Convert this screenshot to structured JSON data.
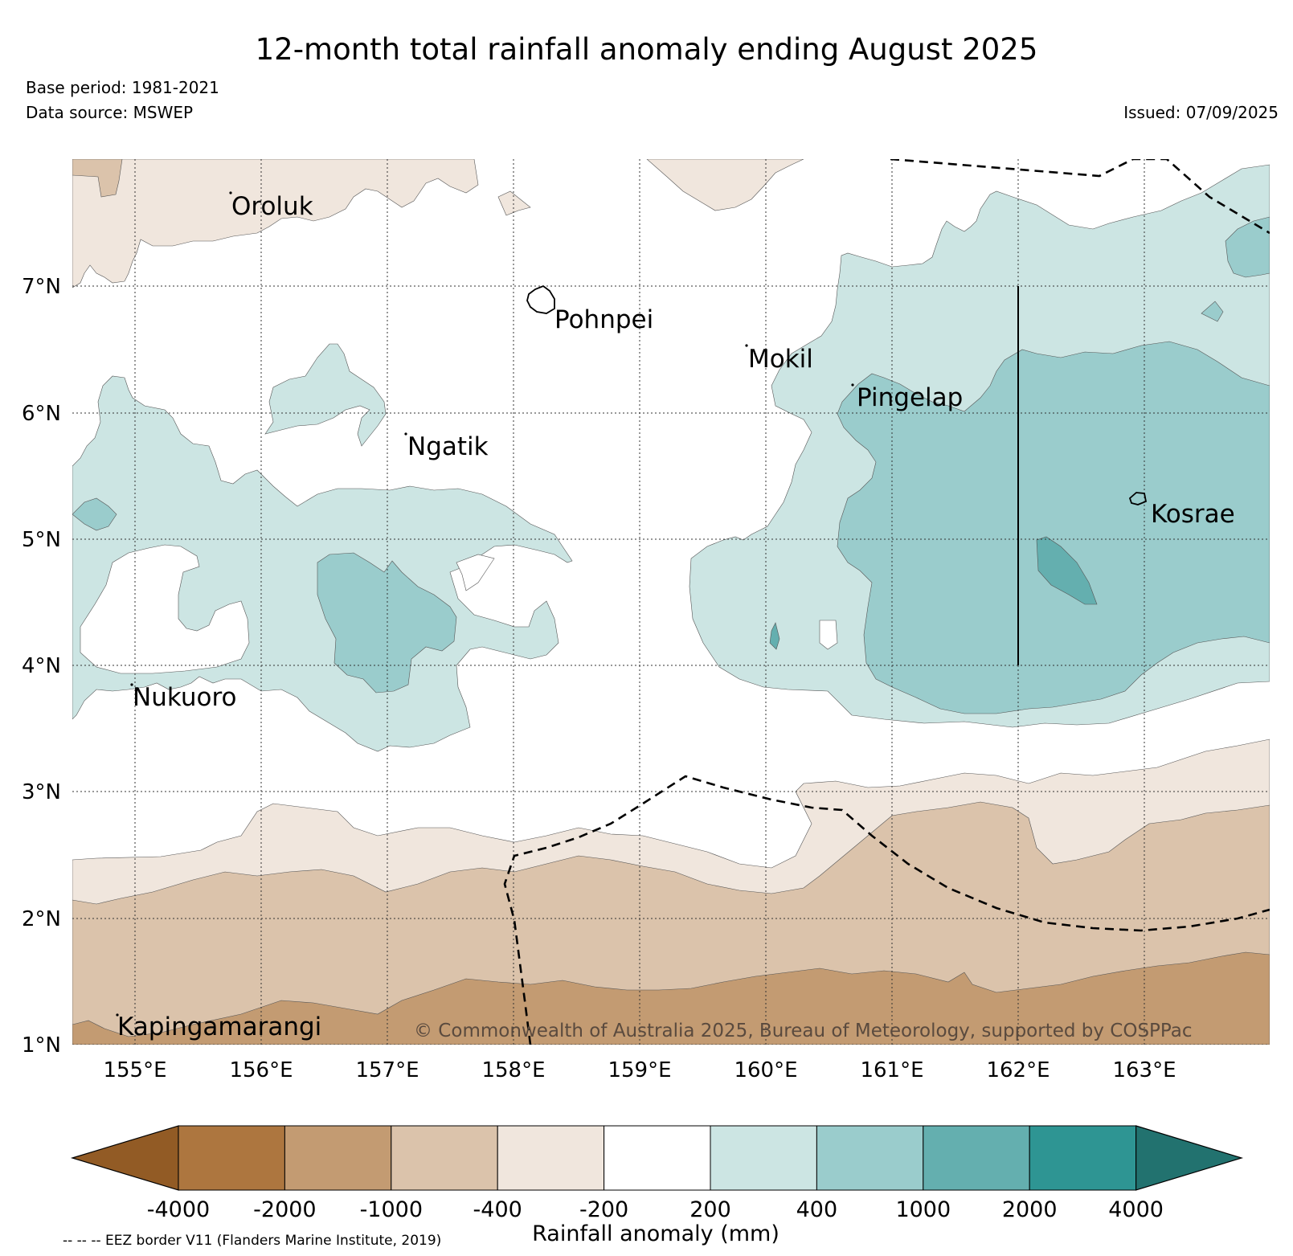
{
  "header": {
    "title": "12-month total rainfall anomaly ending August 2025",
    "base_period": "Base period: 1981-2021",
    "data_source": "Data source: MSWEP",
    "issued": "Issued: 07/09/2025"
  },
  "map": {
    "lat_labels": [
      "7°N",
      "6°N",
      "5°N",
      "4°N",
      "3°N",
      "2°N",
      "1°N"
    ],
    "lon_labels": [
      "155°E",
      "156°E",
      "157°E",
      "158°E",
      "159°E",
      "160°E",
      "161°E",
      "162°E",
      "163°E"
    ],
    "places": [
      "Oroluk",
      "Pohnpei",
      "Mokil",
      "Pingelap",
      "Ngatik",
      "Kosrae",
      "Nukuoro",
      "Kapingamarangi"
    ],
    "copyright": "© Commonwealth of Australia 2025, Bureau of Meteorology, supported by COSPPac"
  },
  "colorbar": {
    "title": "Rainfall anomaly (mm)",
    "tick_labels": [
      "-4000",
      "-2000",
      "-1000",
      "-400",
      "-200",
      "200",
      "400",
      "1000",
      "2000",
      "4000"
    ],
    "colors": [
      "#925b25",
      "#ad763f",
      "#c39b72",
      "#dbc3ab",
      "#f0e6dd",
      "#ffffff",
      "#cce5e3",
      "#9acccc",
      "#64afaf",
      "#2e9593",
      "#22726f"
    ]
  },
  "footer": {
    "eez_note": "-- -- -- EEZ border V11 (Flanders Marine Institute, 2019)"
  }
}
